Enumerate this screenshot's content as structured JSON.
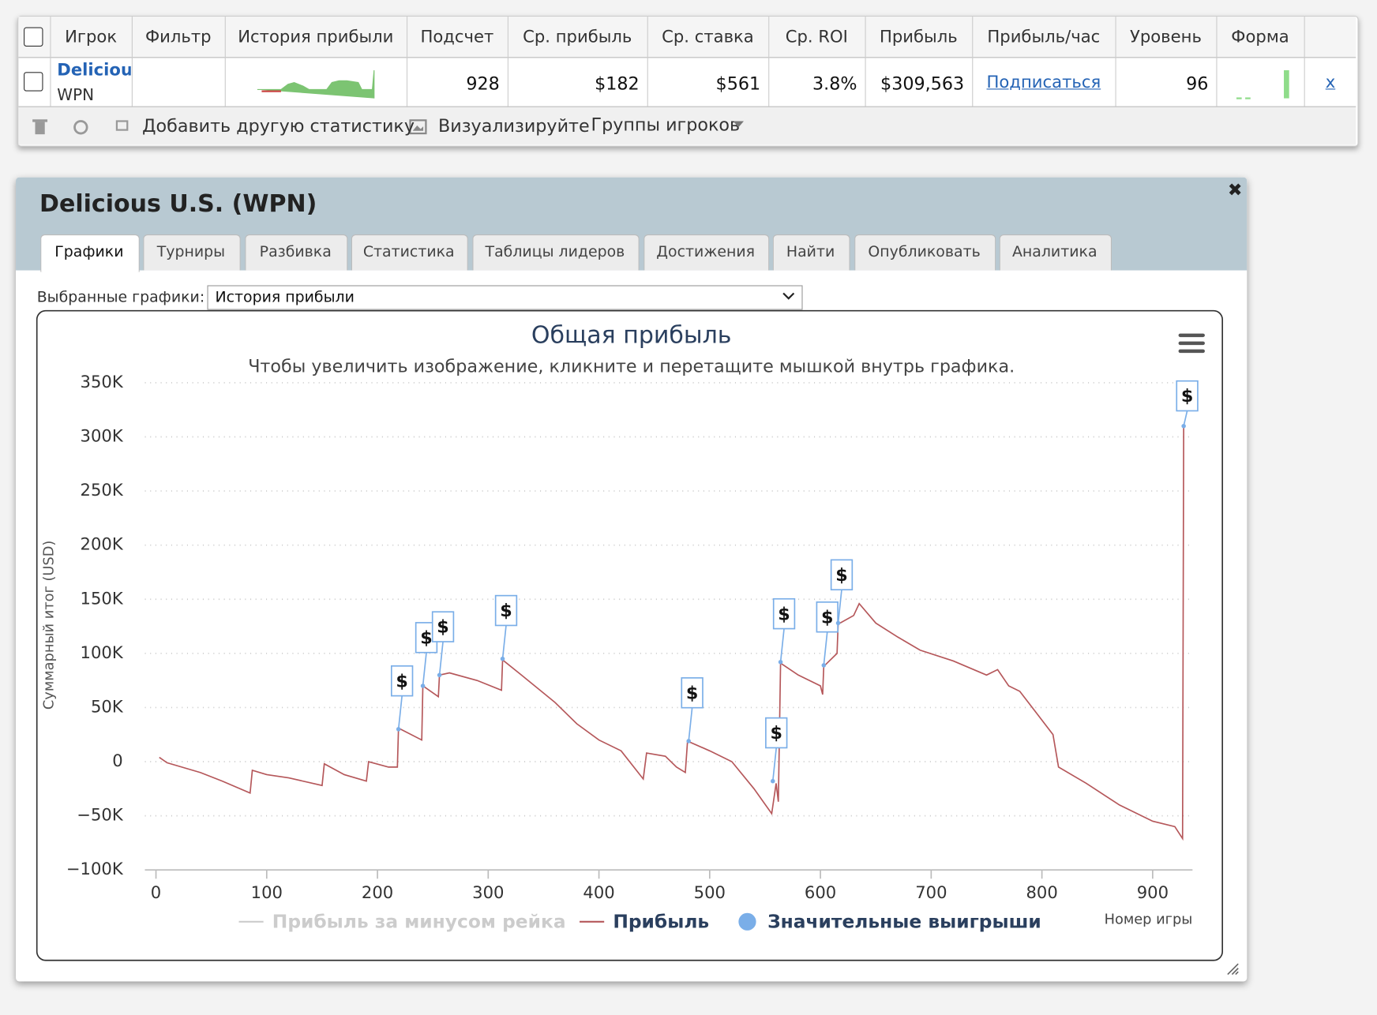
{
  "table": {
    "headers": [
      "Игрок",
      "Фильтр",
      "История прибыли",
      "Подсчет",
      "Ср. прибыль",
      "Ср. ставка",
      "Ср. ROI",
      "Прибыль",
      "Прибыль/час",
      "Уровень",
      "Форма"
    ],
    "row": {
      "player": "Deliciou",
      "network": "WPN",
      "count": "928",
      "avg_profit": "$182",
      "avg_stake": "$561",
      "roi": "3.8%",
      "profit": "$309,563",
      "profit_per_hour": "Подписаться",
      "level": "96",
      "remove": "x"
    }
  },
  "toolbar": {
    "add_stat": "Добавить другую статистику",
    "visualize": "Визуализируйте",
    "groups": "Группы игроков"
  },
  "panel": {
    "title": "Delicious U.S. (WPN)",
    "tabs": [
      "Графики",
      "Турниры",
      "Разбивка",
      "Статистика",
      "Таблицы лидеров",
      "Достижения",
      "Найти",
      "Опубликовать",
      "Аналитика"
    ],
    "selected_label": "Выбранные графики:",
    "selected": "История прибыли"
  },
  "chart_data": {
    "type": "line",
    "title": "Общая прибыль",
    "subtitle": "Чтобы увеличить изображение, кликните и перетащите мышкой внутрь графика.",
    "y_label": "Суммарный итог (USD)",
    "x_label": "Номер игры",
    "xlim": [
      -10,
      936
    ],
    "xticks": [
      0,
      100,
      200,
      300,
      400,
      500,
      600,
      700,
      800,
      900
    ],
    "ylim": [
      -100000,
      350000
    ],
    "yticks": [
      {
        "value": -100000,
        "label": "−100K"
      },
      {
        "value": -50000,
        "label": "−50K"
      },
      0,
      {
        "value": 50000,
        "label": "50K"
      },
      {
        "value": 100000,
        "label": "100K"
      },
      {
        "value": 150000,
        "label": "150K"
      },
      {
        "value": 200000,
        "label": "200K"
      },
      {
        "value": 250000,
        "label": "250K"
      },
      {
        "value": 300000,
        "label": "300K"
      },
      {
        "value": 350000,
        "label": "350K"
      }
    ],
    "grid": true,
    "series": [
      {
        "name": "Прибыль за минусом рейка",
        "color": "#cccccc",
        "visible": false
      },
      {
        "name": "Прибыль",
        "color": "#b5575a",
        "x": [
          3,
          10,
          40,
          60,
          85,
          87,
          100,
          120,
          150,
          152,
          170,
          190,
          192,
          210,
          218,
          219,
          240,
          241,
          255,
          256,
          265,
          290,
          312,
          313,
          330,
          360,
          380,
          400,
          420,
          440,
          443,
          460,
          470,
          478,
          480,
          500,
          520,
          540,
          556,
          560,
          562,
          564,
          580,
          600,
          602,
          603,
          615,
          616,
          630,
          635,
          650,
          670,
          690,
          720,
          750,
          760,
          770,
          780,
          795,
          810,
          815,
          840,
          870,
          900,
          920,
          927,
          928
        ],
        "values": [
          4000,
          -1000,
          -10000,
          -18000,
          -29000,
          -8000,
          -12000,
          -15000,
          -22000,
          -2000,
          -12000,
          -18000,
          0,
          -5000,
          -5000,
          31000,
          20000,
          70000,
          60000,
          80000,
          82000,
          75000,
          66000,
          94000,
          80000,
          55000,
          35000,
          20000,
          10000,
          -16000,
          8000,
          5000,
          -5000,
          -10000,
          19000,
          10000,
          0,
          -25000,
          -48000,
          -20000,
          -37000,
          91000,
          80000,
          70000,
          62000,
          88000,
          100000,
          127000,
          135000,
          146000,
          128000,
          115000,
          103000,
          93000,
          80000,
          85000,
          70000,
          65000,
          45000,
          25000,
          -5000,
          -20000,
          -40000,
          -55000,
          -60000,
          -71000,
          309563
        ]
      },
      {
        "name": "Значительные выигрыши",
        "type": "scatter",
        "color": "#7aaee8",
        "marker_label": "$",
        "x": [
          219,
          241,
          256,
          313,
          481,
          557,
          564,
          603,
          616,
          928
        ],
        "values": [
          30000,
          70000,
          80000,
          95000,
          19000,
          -18000,
          92000,
          89000,
          128000,
          310000
        ]
      }
    ]
  }
}
